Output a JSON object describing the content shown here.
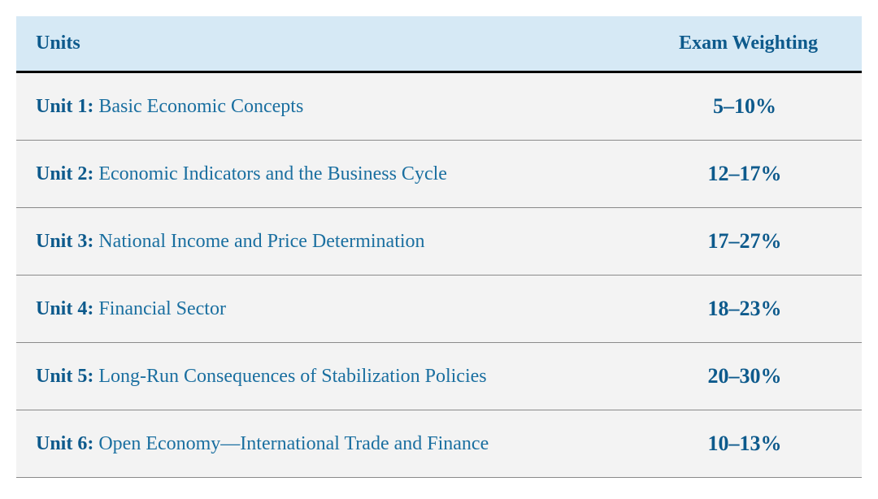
{
  "table": {
    "header": {
      "units_label": "Units",
      "weighting_label": "Exam Weighting"
    },
    "rows": [
      {
        "unit_label": "Unit 1:",
        "title": "Basic Economic Concepts",
        "weighting": "5–10%"
      },
      {
        "unit_label": "Unit 2:",
        "title": "Economic Indicators and the Business Cycle",
        "weighting": "12–17%"
      },
      {
        "unit_label": "Unit 3:",
        "title": "National Income and Price Determination",
        "weighting": "17–27%"
      },
      {
        "unit_label": "Unit 4:",
        "title": "Financial Sector",
        "weighting": "18–23%"
      },
      {
        "unit_label": "Unit 5:",
        "title": "Long-Run Consequences of Stabilization Policies",
        "weighting": "20–30%"
      },
      {
        "unit_label": "Unit 6:",
        "title": "Open Economy—International Trade and Finance",
        "weighting": "10–13%"
      }
    ],
    "colors": {
      "header_bg": "#d6e9f5",
      "row_bg": "#f3f3f3",
      "header_border": "#000000",
      "row_border": "#8a8a8a",
      "text_primary": "#0d5a8c",
      "text_secondary": "#1a6fa0"
    },
    "typography": {
      "header_fontsize": 24,
      "row_fontsize": 24,
      "weighting_fontsize": 26,
      "font_family": "Georgia, serif"
    }
  }
}
